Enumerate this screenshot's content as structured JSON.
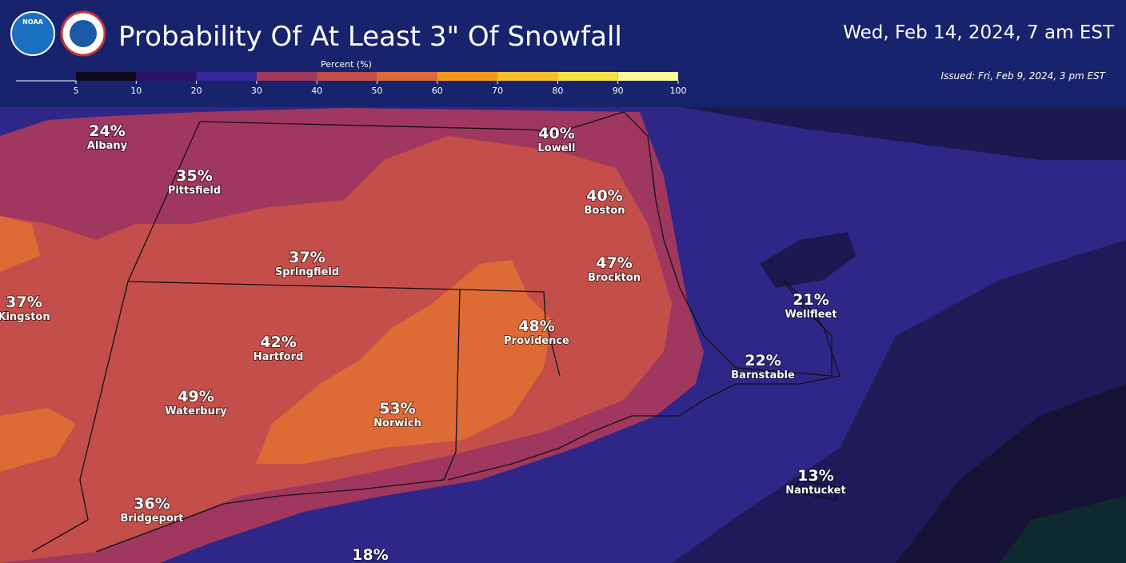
{
  "header": {
    "title": "Probability Of At Least 3\" Of Snowfall",
    "valid_time": "Wed, Feb 14, 2024, 7 am EST",
    "issued": "Issued: Fri, Feb 9, 2024, 3 pm EST",
    "logos": [
      "NOAA",
      "NATIONAL WEATHER SERVICE"
    ]
  },
  "legend": {
    "label": "Percent (%)",
    "ticks": [
      5,
      10,
      20,
      30,
      40,
      50,
      60,
      70,
      80,
      90,
      100
    ],
    "colors": [
      "#0c0a1c",
      "#2b1266",
      "#34289a",
      "#a3385e",
      "#c44f4a",
      "#de6a3a",
      "#f39a1c",
      "#f6bf2c",
      "#f8e048",
      "#fcf79a"
    ]
  },
  "cities": [
    {
      "value": "24%",
      "name": "Albany"
    },
    {
      "value": "35%",
      "name": "Pittsfield"
    },
    {
      "value": "40%",
      "name": "Lowell"
    },
    {
      "value": "40%",
      "name": "Boston"
    },
    {
      "value": "37%",
      "name": "Springfield"
    },
    {
      "value": "47%",
      "name": "Brockton"
    },
    {
      "value": "37%",
      "name": "Kingston"
    },
    {
      "value": "48%",
      "name": "Providence"
    },
    {
      "value": "42%",
      "name": "Hartford"
    },
    {
      "value": "21%",
      "name": "Wellfleet"
    },
    {
      "value": "22%",
      "name": "Barnstable"
    },
    {
      "value": "49%",
      "name": "Waterbury"
    },
    {
      "value": "53%",
      "name": "Norwich"
    },
    {
      "value": "13%",
      "name": "Nantucket"
    },
    {
      "value": "36%",
      "name": "Bridgeport"
    },
    {
      "value": "18%"
    }
  ]
}
